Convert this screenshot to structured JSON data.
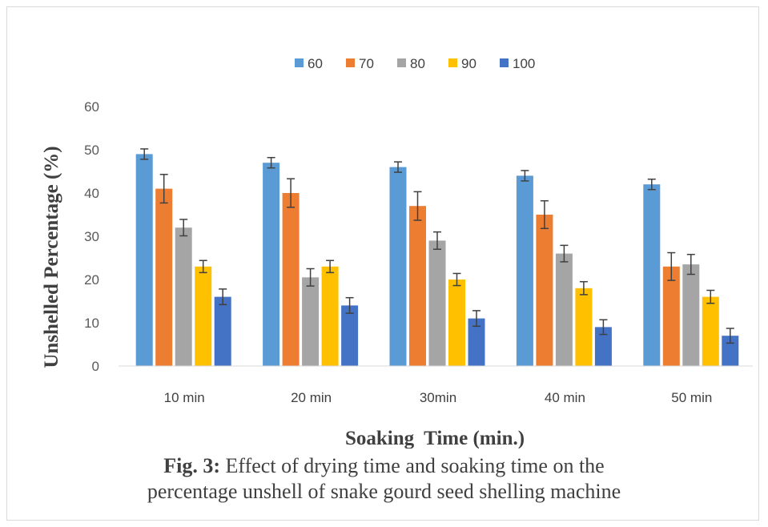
{
  "chart_data": {
    "type": "bar",
    "categories": [
      "10 min",
      "20 min",
      "30min",
      "40 min",
      "50 min"
    ],
    "series": [
      {
        "name": "60",
        "color": "#5B9BD5",
        "values": [
          49,
          47,
          46,
          44,
          42
        ],
        "errors": [
          1.2,
          1.2,
          1.2,
          1.2,
          1.2
        ]
      },
      {
        "name": "70",
        "color": "#ED7D31",
        "values": [
          41,
          40,
          37,
          35,
          23
        ],
        "errors": [
          3.3,
          3.3,
          3.3,
          3.2,
          3.2
        ]
      },
      {
        "name": "80",
        "color": "#A5A5A5",
        "values": [
          32,
          20.5,
          29,
          26,
          23.5
        ],
        "errors": [
          1.9,
          2.0,
          2.0,
          1.9,
          2.3
        ]
      },
      {
        "name": "90",
        "color": "#FFC000",
        "values": [
          23,
          23,
          20,
          18,
          16
        ],
        "errors": [
          1.4,
          1.4,
          1.4,
          1.5,
          1.5
        ]
      },
      {
        "name": "100",
        "color": "#4472C4",
        "values": [
          16,
          14,
          11,
          9,
          7
        ],
        "errors": [
          1.8,
          1.8,
          1.8,
          1.7,
          1.7
        ]
      }
    ],
    "xlabel": "Soaking  Time (min.)",
    "ylabel": "Unshelled Percentage (%)",
    "ylim": [
      0,
      60
    ],
    "yticks": [
      0,
      10,
      20,
      30,
      40,
      50,
      60
    ],
    "grid": false,
    "legend_position": "top"
  },
  "caption": {
    "prefix": "Fig. 3:",
    "line1": " Effect of drying time and soaking time on the",
    "line2": "percentage unshell of snake gourd seed shelling machine"
  }
}
